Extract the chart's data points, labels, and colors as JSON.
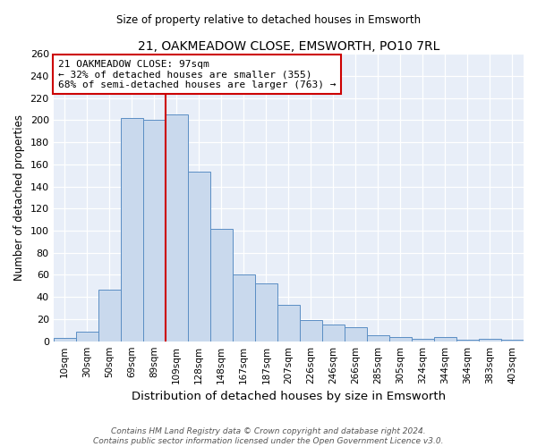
{
  "title": "21, OAKMEADOW CLOSE, EMSWORTH, PO10 7RL",
  "subtitle": "Size of property relative to detached houses in Emsworth",
  "xlabel": "Distribution of detached houses by size in Emsworth",
  "ylabel": "Number of detached properties",
  "bar_labels": [
    "10sqm",
    "30sqm",
    "50sqm",
    "69sqm",
    "89sqm",
    "109sqm",
    "128sqm",
    "148sqm",
    "167sqm",
    "187sqm",
    "207sqm",
    "226sqm",
    "246sqm",
    "266sqm",
    "285sqm",
    "305sqm",
    "324sqm",
    "344sqm",
    "364sqm",
    "383sqm",
    "403sqm"
  ],
  "bar_values": [
    3,
    9,
    47,
    202,
    200,
    205,
    153,
    102,
    60,
    52,
    33,
    19,
    15,
    13,
    5,
    4,
    2,
    4,
    1,
    2,
    1
  ],
  "bar_color": "#c9d9ed",
  "bar_edge_color": "#5b8ec4",
  "vline_x_index": 4.5,
  "vline_color": "#cc0000",
  "annotation_title": "21 OAKMEADOW CLOSE: 97sqm",
  "annotation_line1": "← 32% of detached houses are smaller (355)",
  "annotation_line2": "68% of semi-detached houses are larger (763) →",
  "annotation_box_color": "#cc0000",
  "ylim": [
    0,
    260
  ],
  "yticks": [
    0,
    20,
    40,
    60,
    80,
    100,
    120,
    140,
    160,
    180,
    200,
    220,
    240,
    260
  ],
  "footer1": "Contains HM Land Registry data © Crown copyright and database right 2024.",
  "footer2": "Contains public sector information licensed under the Open Government Licence v3.0.",
  "bg_color": "#ffffff",
  "plot_bg_color": "#e8eef8"
}
